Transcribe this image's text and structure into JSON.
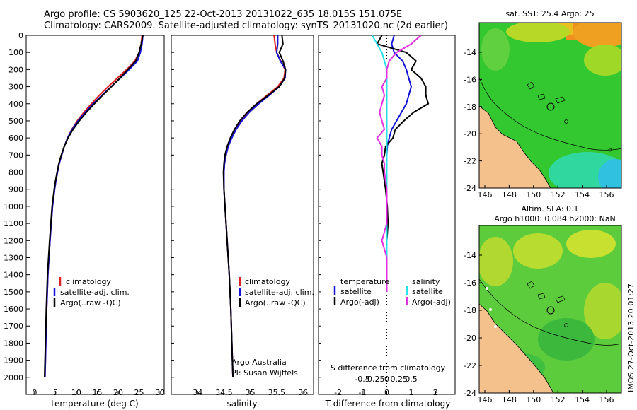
{
  "header": {
    "line1": "Argo profile: CS 5903620_125 22-Oct-2013 20131022_635 18.015S 151.075E",
    "line2": "Climatology: CARS2009. Satellite-adjusted climatology: synTS_20131020.nc (2d earlier)"
  },
  "colors": {
    "climatology": "#e02020",
    "satellite": "#1414d8",
    "argo": "#000000",
    "salinity_satellite": "#28e0e8",
    "salinity_argo": "#e030e0",
    "land": "#f4c08c"
  },
  "depth_axis": {
    "ticks": [
      0,
      100,
      200,
      300,
      400,
      500,
      600,
      700,
      800,
      900,
      1000,
      1100,
      1200,
      1300,
      1400,
      1500,
      1600,
      1700,
      1800,
      1900,
      2000
    ],
    "range": [
      0,
      2100
    ]
  },
  "chart_data": [
    {
      "id": "temperature",
      "type": "line",
      "xlabel": "temperature (deg C)",
      "xlim": [
        -2,
        31
      ],
      "xticks": [
        0,
        5,
        10,
        15,
        20,
        25,
        30
      ],
      "depth": [
        0,
        50,
        100,
        150,
        200,
        250,
        300,
        350,
        400,
        450,
        500,
        550,
        600,
        650,
        700,
        750,
        800,
        850,
        900,
        1000,
        1200,
        1400,
        1600,
        1800,
        2000
      ],
      "series": [
        {
          "name": "climatology",
          "values": [
            25.7,
            25.5,
            25.0,
            24.0,
            22.0,
            19.8,
            17.6,
            15.5,
            13.6,
            11.8,
            10.2,
            8.9,
            7.9,
            7.1,
            6.5,
            5.9,
            5.5,
            5.1,
            4.8,
            4.3,
            3.7,
            3.2,
            2.9,
            2.7,
            2.5
          ]
        },
        {
          "name": "satellite-adj. clim.",
          "values": [
            25.9,
            25.7,
            25.3,
            24.6,
            22.6,
            20.5,
            18.3,
            16.1,
            14.0,
            12.1,
            10.4,
            9.0,
            7.9,
            7.1,
            6.5,
            5.9,
            5.5,
            5.1,
            4.8,
            4.3,
            3.7,
            3.2,
            2.9,
            2.7,
            2.5
          ]
        },
        {
          "name": "Argo(..raw -QC)",
          "values": [
            25.9,
            25.5,
            25.0,
            24.2,
            22.3,
            20.4,
            18.4,
            16.3,
            14.3,
            12.4,
            10.7,
            9.2,
            8.0,
            7.1,
            6.4,
            5.8,
            5.4,
            5.0,
            4.7,
            4.2,
            3.6,
            3.1,
            2.8,
            2.6,
            2.4
          ]
        }
      ],
      "legend": [
        "climatology",
        "satellite-adj. clim.",
        "Argo(..raw -QC)"
      ]
    },
    {
      "id": "salinity",
      "type": "line",
      "xlabel": "salinity",
      "xlim": [
        33.5,
        36.2
      ],
      "xticks": [
        34,
        34.5,
        35,
        35.5,
        36
      ],
      "xticklabels": [
        "34",
        "34.5",
        "35",
        "35.5",
        "36"
      ],
      "depth": [
        0,
        50,
        100,
        150,
        200,
        250,
        300,
        350,
        400,
        450,
        500,
        550,
        600,
        650,
        700,
        750,
        800,
        900,
        1000,
        1200,
        1400,
        1600,
        1800,
        2000
      ],
      "series": [
        {
          "name": "climatology",
          "values": [
            35.45,
            35.47,
            35.5,
            35.58,
            35.66,
            35.64,
            35.52,
            35.32,
            35.12,
            34.95,
            34.82,
            34.72,
            34.64,
            34.58,
            34.54,
            34.51,
            34.5,
            34.5,
            34.52,
            34.56,
            34.6,
            34.63,
            34.65,
            34.67
          ]
        },
        {
          "name": "satellite-adj. clim.",
          "values": [
            35.52,
            35.52,
            35.5,
            35.57,
            35.67,
            35.66,
            35.55,
            35.36,
            35.16,
            34.98,
            34.84,
            34.73,
            34.65,
            34.58,
            34.54,
            34.51,
            34.5,
            34.5,
            34.52,
            34.56,
            34.6,
            34.63,
            34.65,
            34.67
          ]
        },
        {
          "name": "Argo(..raw -QC)",
          "values": [
            35.6,
            35.62,
            35.55,
            35.62,
            35.67,
            35.65,
            35.55,
            35.34,
            35.12,
            34.94,
            34.8,
            34.7,
            34.62,
            34.56,
            34.52,
            34.5,
            34.49,
            34.5,
            34.52,
            34.56,
            34.6,
            34.63,
            34.65,
            34.67
          ]
        }
      ],
      "legend": [
        "climatology",
        "satellite-adj. clim.",
        "Argo(..raw -QC)"
      ],
      "annotations": [
        "Argo Australia",
        "PI: Susan Wijffels"
      ]
    },
    {
      "id": "difference",
      "type": "line",
      "xlabel": "T difference from climatology",
      "xlabel_top": "S difference from climatology",
      "xlim": [
        -2.8,
        2.8
      ],
      "xticks": [
        -2,
        -1,
        0,
        1,
        2
      ],
      "xticklabels": [
        "-2",
        "-1",
        "0",
        "1",
        "2"
      ],
      "sticks_values": [
        -0.5,
        -0.25,
        0,
        0.25,
        0.5
      ],
      "sticklabels": [
        "-0.5",
        "-0.25",
        "0",
        "0.25",
        "0.5"
      ],
      "depth": [
        0,
        50,
        100,
        150,
        200,
        250,
        300,
        350,
        400,
        450,
        500,
        550,
        600,
        650,
        700,
        750,
        800,
        900,
        1000,
        1100,
        1200,
        1300,
        1400,
        1500
      ],
      "series": [
        {
          "name": "temperature satellite",
          "values": [
            0.3,
            0.2,
            0.3,
            0.65,
            0.8,
            0.9,
            1.0,
            0.9,
            0.8,
            0.6,
            0.4,
            0.2,
            0.1,
            0.02,
            0.0,
            0.0,
            0.0,
            0.0,
            0.0,
            0.0,
            0.0,
            0.0,
            0.0,
            0.0
          ]
        },
        {
          "name": "temperature Argo(-adj)",
          "values": [
            -0.2,
            -0.4,
            0.8,
            1.2,
            1.0,
            1.4,
            1.6,
            1.6,
            1.7,
            1.1,
            0.7,
            0.35,
            0.25,
            -0.05,
            -0.1,
            -0.2,
            -0.15,
            -0.05,
            0.02,
            0.05,
            0.0,
            0.0,
            0.0,
            0.0
          ]
        },
        {
          "name": "salinity satellite",
          "values": [
            -0.3,
            -0.2,
            -0.1,
            -0.05,
            0.0,
            0.0,
            0.0,
            0.0,
            0.0,
            0.0,
            0.0,
            0.0,
            0.0,
            0.0,
            0.0,
            0.0,
            0.0,
            0.0,
            0.0,
            0.0,
            0.0,
            0.0,
            0.0,
            0.0
          ]
        },
        {
          "name": "salinity Argo(-adj)",
          "values": [
            0.7,
            0.5,
            0.2,
            0.05,
            0.0,
            0.0,
            -0.1,
            -0.05,
            -0.1,
            -0.15,
            -0.1,
            -0.05,
            -0.2,
            -0.1,
            -0.1,
            -0.05,
            -0.05,
            0.0,
            0.0,
            0.0,
            -0.1,
            0.0,
            0.0,
            0.0
          ]
        }
      ],
      "legend_temperature_title": "temperature",
      "legend_temperature": [
        "satellite",
        "Argo(-adj)"
      ],
      "legend_salinity_title": "salinity",
      "legend_salinity": [
        "satellite",
        "Argo(-adj)"
      ]
    }
  ],
  "maps": [
    {
      "id": "sst-map",
      "title": "sat. SST: 25.4 Argo: 25"
    },
    {
      "id": "sla-map",
      "title1": "Altim. SLA: 0.1",
      "title2": "Argo h1000: 0.084 h2000: NaN"
    }
  ],
  "map_axes": {
    "lat_ticks": [
      "-14",
      "-16",
      "-18",
      "-20",
      "-22",
      "-24"
    ],
    "lon_ticks": [
      "146",
      "148",
      "150",
      "152",
      "154",
      "156"
    ]
  },
  "footer_stamp": "IMOS 27-Oct-2013 20:01:27"
}
